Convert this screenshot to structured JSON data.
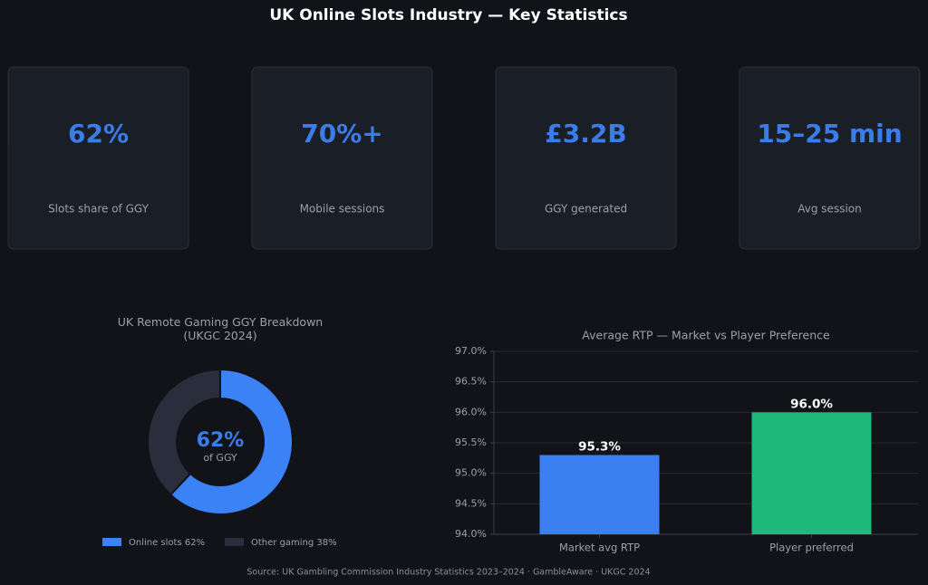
{
  "title": "UK Online Slots Industry — Key Statistics",
  "kpis": [
    {
      "value": "62%",
      "label": "Slots share of GGY"
    },
    {
      "value": "70%+",
      "label": "Mobile sessions"
    },
    {
      "value": "£3.2B",
      "label": "GGY generated"
    },
    {
      "value": "15–25 min",
      "label": "Avg session"
    }
  ],
  "chart_data": [
    {
      "type": "donut",
      "title": "UK Remote Gaming GGY Breakdown\n(UKGC 2024)",
      "categories": [
        "Online slots 62%",
        "Other gaming 38%"
      ],
      "values": [
        62,
        38
      ],
      "colors": [
        "#3b82f6",
        "#2a2e3c"
      ],
      "center_label": "62%",
      "center_sublabel": "of GGY"
    },
    {
      "type": "bar",
      "title": "Average RTP — Market vs Player Preference",
      "categories": [
        "Market avg RTP",
        "Player preferred"
      ],
      "values": [
        95.3,
        96.0
      ],
      "value_labels": [
        "95.3%",
        "96.0%"
      ],
      "colors": [
        "#3b7ff2",
        "#1db87a"
      ],
      "ylim": [
        94,
        97
      ],
      "yticks": [
        {
          "value": 94,
          "label": "94.0%"
        },
        {
          "value": 94.5,
          "label": "94.5%"
        },
        {
          "value": 95,
          "label": "95.0%"
        },
        {
          "value": 95.5,
          "label": "95.5%"
        },
        {
          "value": 96,
          "label": "96.0%"
        },
        {
          "value": 96.5,
          "label": "96.5%"
        },
        {
          "value": 97,
          "label": "97.0%"
        }
      ],
      "grid": true
    }
  ],
  "source": "Source: UK Gambling Commission Industry Statistics 2023–2024 · GambleAware · UKGC 2024"
}
